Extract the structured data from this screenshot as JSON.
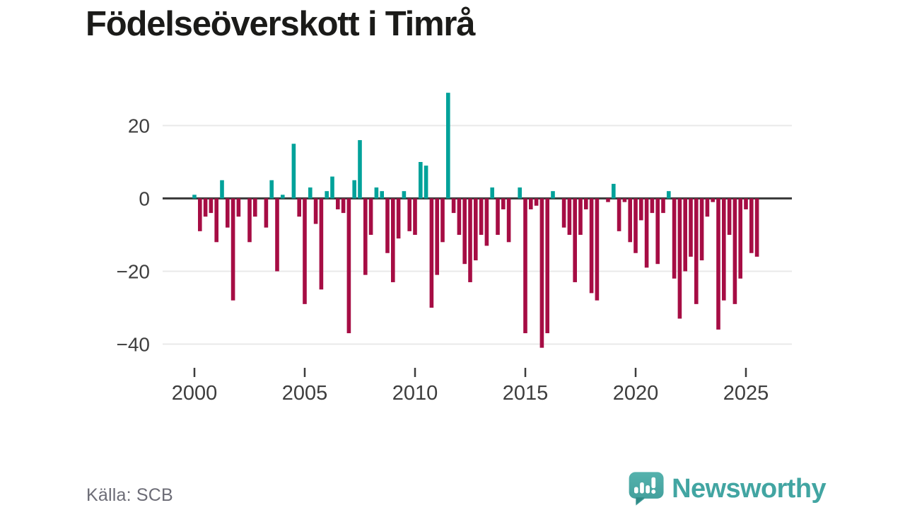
{
  "title": "Födelseöverskott i Timrå",
  "source": {
    "label": "Källa: SCB"
  },
  "brand": {
    "name": "Newsworthy",
    "icon": "newsworthy-speech-bubble-bar-chart-icon",
    "color": "#42a5a2"
  },
  "chart_data": {
    "type": "bar",
    "title": "Födelseöverskott i Timrå",
    "frequency": "quarterly",
    "x_start": "2000 Q1",
    "x_end": "2025 Q3",
    "x_tick_labels": [
      "2000",
      "2005",
      "2010",
      "2015",
      "2020",
      "2025"
    ],
    "y_tick_labels": [
      "20",
      "0",
      "−20",
      "−40"
    ],
    "y_tick_values": [
      20,
      0,
      -20,
      -40
    ],
    "ylim": [
      -44,
      31
    ],
    "grid": "horizontal",
    "legend": "none",
    "positive_color": "#00a29a",
    "negative_color": "#a60d44",
    "axis_color": "#3d3d3d",
    "gridline_color": "#e9e9e9",
    "values": [
      1,
      -9,
      -5,
      -4,
      -12,
      5,
      -8,
      -28,
      -5,
      0,
      -12,
      -5,
      0,
      -8,
      5,
      -20,
      1,
      0,
      15,
      -5,
      -29,
      3,
      -7,
      -25,
      2,
      6,
      -3,
      -4,
      -37,
      5,
      16,
      -21,
      -10,
      3,
      2,
      -15,
      -23,
      -11,
      2,
      -9,
      -10,
      10,
      9,
      -30,
      -21,
      -12,
      29,
      -4,
      -10,
      -18,
      -23,
      -17,
      -10,
      -13,
      3,
      -10,
      -3,
      -12,
      0,
      3,
      -37,
      -3,
      -2,
      -41,
      -37,
      2,
      0,
      -8,
      -10,
      -23,
      -10,
      -3,
      -26,
      -28,
      0,
      -1,
      4,
      -9,
      -1,
      -12,
      -15,
      -6,
      -19,
      -4,
      -18,
      -4,
      2,
      -22,
      -33,
      -20,
      -16,
      -29,
      -17,
      -5,
      -1,
      -36,
      -28,
      -10,
      -29,
      -22,
      -3,
      -15,
      -16
    ]
  }
}
